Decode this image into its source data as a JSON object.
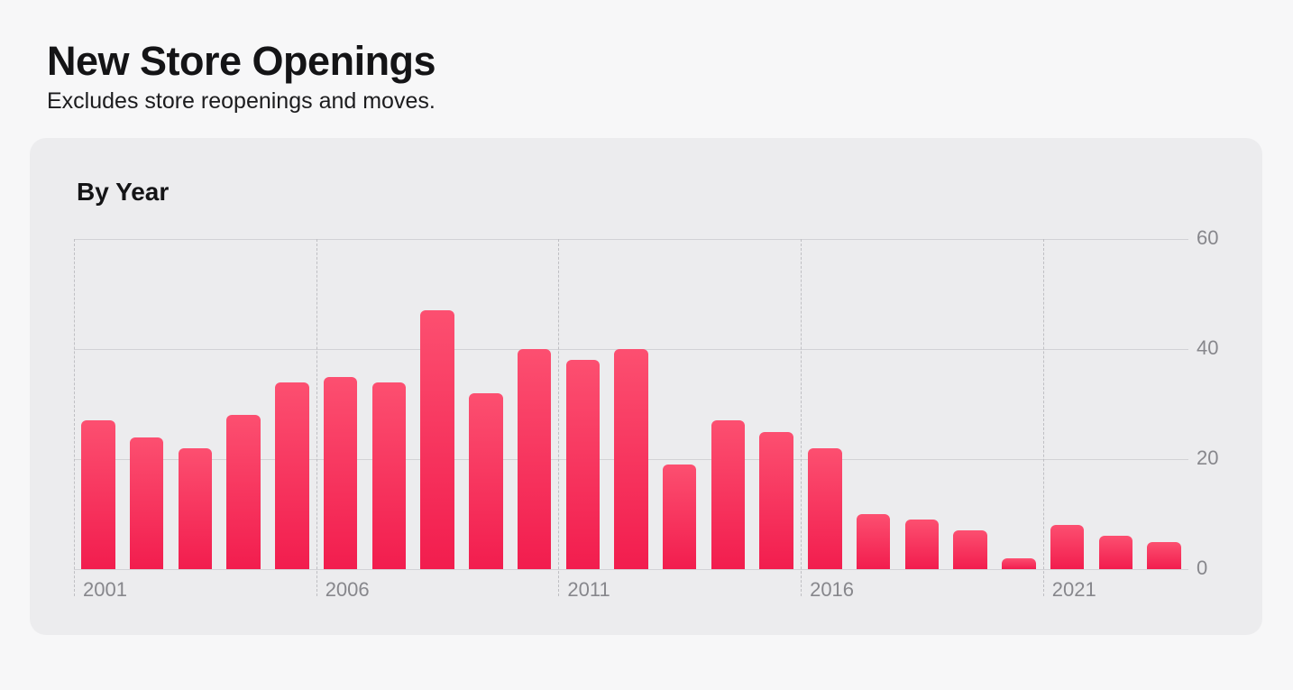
{
  "header": {
    "title": "New Store Openings",
    "subtitle": "Excludes store reopenings and moves."
  },
  "card": {
    "title": "By Year"
  },
  "chart_data": {
    "type": "bar",
    "title": "By Year",
    "xlabel": "",
    "ylabel": "",
    "categories": [
      2001,
      2002,
      2003,
      2004,
      2005,
      2006,
      2007,
      2008,
      2009,
      2010,
      2011,
      2012,
      2013,
      2014,
      2015,
      2016,
      2017,
      2018,
      2019,
      2020,
      2021,
      2022,
      2023
    ],
    "values": [
      27,
      24,
      22,
      28,
      34,
      35,
      34,
      47,
      32,
      40,
      38,
      40,
      19,
      27,
      25,
      22,
      10,
      9,
      7,
      2,
      8,
      6,
      5
    ],
    "ylim": [
      0,
      60
    ],
    "y_ticks": [
      0,
      20,
      40,
      60
    ],
    "x_tick_labels": [
      "2001",
      "2006",
      "2011",
      "2016",
      "2021"
    ],
    "x_tick_years": [
      2001,
      2006,
      2011,
      2016,
      2021
    ],
    "grid": true,
    "legend": "none",
    "bar_gradient_top": "#fc4f70",
    "bar_gradient_bottom": "#f21d4e",
    "gridline_color": "#d2d2d6",
    "dashed_gridline_color": "#bfbfc3",
    "axis_label_color": "#87878c"
  }
}
